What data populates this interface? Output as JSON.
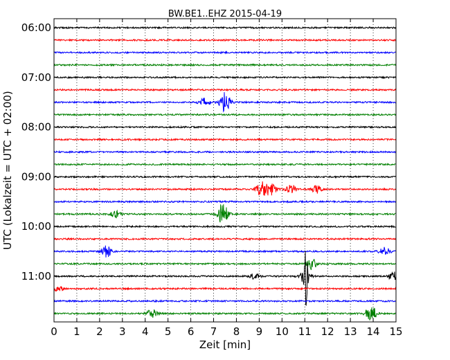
{
  "chart_data": {
    "type": "line",
    "title": "BW.BE1..EHZ 2015-04-19",
    "xlabel": "Zeit  [min]",
    "ylabel": "UTC (Lokalzeit = UTC + 02:00)",
    "xlim": [
      0,
      15
    ],
    "x_ticks": [
      "0",
      "1",
      "2",
      "3",
      "4",
      "5",
      "6",
      "7",
      "8",
      "9",
      "10",
      "11",
      "12",
      "13",
      "14",
      "15"
    ],
    "y_ticks": [
      {
        "row": 0,
        "label": "06:00"
      },
      {
        "row": 4,
        "label": "07:00"
      },
      {
        "row": 8,
        "label": "08:00"
      },
      {
        "row": 12,
        "label": "09:00"
      },
      {
        "row": 16,
        "label": "10:00"
      },
      {
        "row": 20,
        "label": "11:00"
      }
    ],
    "grid": "vertical dotted",
    "trace_colors": [
      "#000000",
      "#ff0000",
      "#0000ff",
      "#008000"
    ],
    "row_start_times": [
      "06:00",
      "06:15",
      "06:30",
      "06:45",
      "07:00",
      "07:15",
      "07:30",
      "07:45",
      "08:00",
      "08:15",
      "08:30",
      "08:45",
      "09:00",
      "09:15",
      "09:30",
      "09:45",
      "10:00",
      "10:15",
      "10:30",
      "10:45",
      "11:00",
      "11:15",
      "11:30",
      "11:45"
    ],
    "events": [
      {
        "row": 6,
        "t": 6.6,
        "amp": 0.35
      },
      {
        "row": 6,
        "t": 7.5,
        "amp": 0.85
      },
      {
        "row": 13,
        "t": 9.1,
        "amp": 0.6
      },
      {
        "row": 13,
        "t": 9.5,
        "amp": 0.45
      },
      {
        "row": 13,
        "t": 10.4,
        "amp": 0.35
      },
      {
        "row": 13,
        "t": 11.5,
        "amp": 0.3
      },
      {
        "row": 15,
        "t": 2.7,
        "amp": 0.25
      },
      {
        "row": 15,
        "t": 7.4,
        "amp": 0.9
      },
      {
        "row": 18,
        "t": 2.3,
        "amp": 0.45
      },
      {
        "row": 18,
        "t": 14.5,
        "amp": 0.35
      },
      {
        "row": 19,
        "t": 11.3,
        "amp": 0.45
      },
      {
        "row": 20,
        "t": 8.8,
        "amp": 0.2
      },
      {
        "row": 20,
        "t": 11.0,
        "amp": 0.55
      },
      {
        "row": 20,
        "t": 11.05,
        "amp": 3.0
      },
      {
        "row": 20,
        "t": 14.9,
        "amp": 0.35
      },
      {
        "row": 21,
        "t": 0.2,
        "amp": 0.2
      },
      {
        "row": 23,
        "t": 4.3,
        "amp": 0.35
      },
      {
        "row": 23,
        "t": 13.9,
        "amp": 0.65
      }
    ]
  }
}
